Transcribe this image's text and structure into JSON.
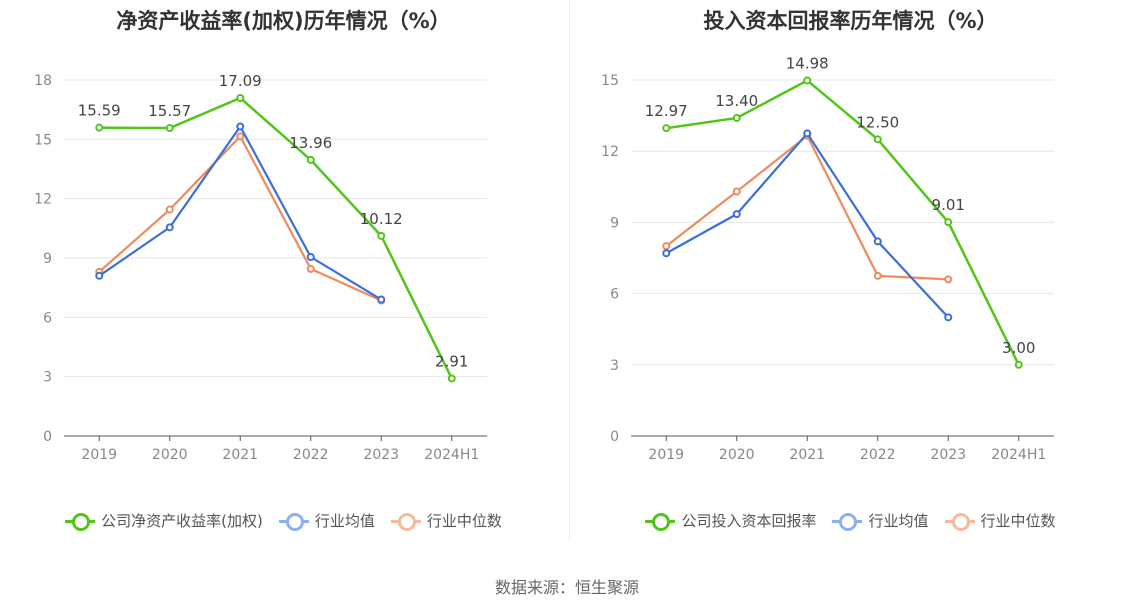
{
  "chart_data": [
    {
      "type": "line",
      "title": "净资产收益率(加权)历年情况（%）",
      "categories": [
        "2019",
        "2020",
        "2021",
        "2022",
        "2023",
        "2024H1"
      ],
      "ylim": [
        0,
        18
      ],
      "yticks": [
        0,
        3,
        6,
        9,
        12,
        15,
        18
      ],
      "grid": true,
      "legend_position": "bottom",
      "series": [
        {
          "name": "公司净资产收益率(加权)",
          "color": "#52c41a",
          "values": [
            15.59,
            15.57,
            17.09,
            13.96,
            10.12,
            2.91
          ],
          "labels": [
            "15.59",
            "15.57",
            "17.09",
            "13.96",
            "10.12",
            "2.91"
          ]
        },
        {
          "name": "行业均值",
          "color": "#3b6fd9",
          "values": [
            8.1,
            10.55,
            15.65,
            9.05,
            6.9,
            null
          ]
        },
        {
          "name": "行业中位数",
          "color": "#f08a5d",
          "values": [
            8.3,
            11.45,
            15.15,
            8.45,
            6.85,
            null
          ]
        }
      ]
    },
    {
      "type": "line",
      "title": "投入资本回报率历年情况（%）",
      "categories": [
        "2019",
        "2020",
        "2021",
        "2022",
        "2023",
        "2024H1"
      ],
      "ylim": [
        0,
        15
      ],
      "yticks": [
        0,
        3,
        6,
        9,
        12,
        15
      ],
      "grid": true,
      "legend_position": "bottom",
      "series": [
        {
          "name": "公司投入资本回报率",
          "color": "#52c41a",
          "values": [
            12.97,
            13.4,
            14.98,
            12.5,
            9.01,
            3.0
          ],
          "labels": [
            "12.97",
            "13.40",
            "14.98",
            "12.50",
            "9.01",
            "3.00"
          ]
        },
        {
          "name": "行业均值",
          "color": "#3b6fd9",
          "values": [
            7.7,
            9.35,
            12.75,
            8.2,
            5.0,
            null
          ]
        },
        {
          "name": "行业中位数",
          "color": "#f08a5d",
          "values": [
            8.0,
            10.3,
            12.65,
            6.75,
            6.6,
            null
          ]
        }
      ]
    }
  ],
  "legend_color_light": {
    "行业均值": "#8fb0f0",
    "行业中位数": "#f7b89c"
  },
  "source": "数据来源：恒生聚源"
}
